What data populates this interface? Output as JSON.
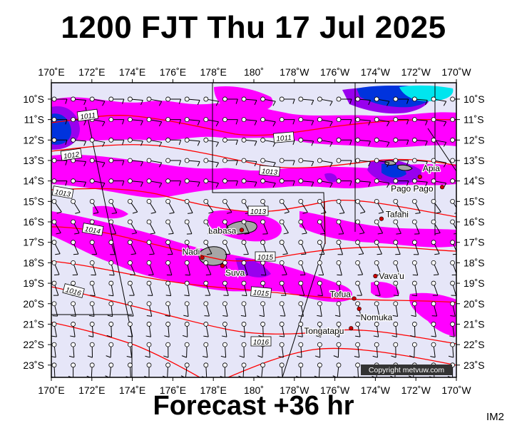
{
  "title": "1200 FJT Thu 17 Jul 2025",
  "subtitle": "Forecast +36 hr",
  "product_code": "IM2",
  "copyright": "Copyright metvuw.com",
  "lon_labels": [
    "170˚E",
    "172˚E",
    "174˚E",
    "176˚E",
    "178˚E",
    "180˚",
    "178˚W",
    "176˚W",
    "174˚W",
    "172˚W",
    "170˚W"
  ],
  "lat_labels": [
    "10˚S",
    "11˚S",
    "12˚S",
    "13˚S",
    "14˚S",
    "15˚S",
    "16˚S",
    "17˚S",
    "18˚S",
    "19˚S",
    "20˚S",
    "21˚S",
    "22˚S",
    "23˚S"
  ],
  "places": [
    {
      "name": "Apia",
      "lon": -171.8,
      "lat": -13.8
    },
    {
      "name": "Pago Pago",
      "lon": -170.7,
      "lat": -14.3
    },
    {
      "name": "Tafahi",
      "lon": -173.7,
      "lat": -15.85
    },
    {
      "name": "Labasa",
      "lon": 179.4,
      "lat": -16.4
    },
    {
      "name": "Nadi",
      "lon": 177.45,
      "lat": -17.75
    },
    {
      "name": "Suva",
      "lon": 178.45,
      "lat": -18.15
    },
    {
      "name": "Vava'u",
      "lon": -174.0,
      "lat": -18.65
    },
    {
      "name": "Tofua",
      "lon": -175.05,
      "lat": -19.75
    },
    {
      "name": "Nomuka",
      "lon": -174.8,
      "lat": -20.25
    },
    {
      "name": "Tongatapu",
      "lon": -175.2,
      "lat": -21.2
    }
  ],
  "isobar_labels": [
    "1011",
    "1011",
    "1012",
    "1013",
    "1013",
    "1013",
    "1014",
    "1015",
    "1015",
    "1016",
    "1016"
  ],
  "colors": {
    "background": "#e6e6f8",
    "rain_magenta": "#ff00ff",
    "rain_purple": "#9900ee",
    "rain_blue": "#0033dd",
    "rain_cyan": "#00e5ee",
    "isobar": "#ff0000",
    "land": "#a6a6a6"
  }
}
